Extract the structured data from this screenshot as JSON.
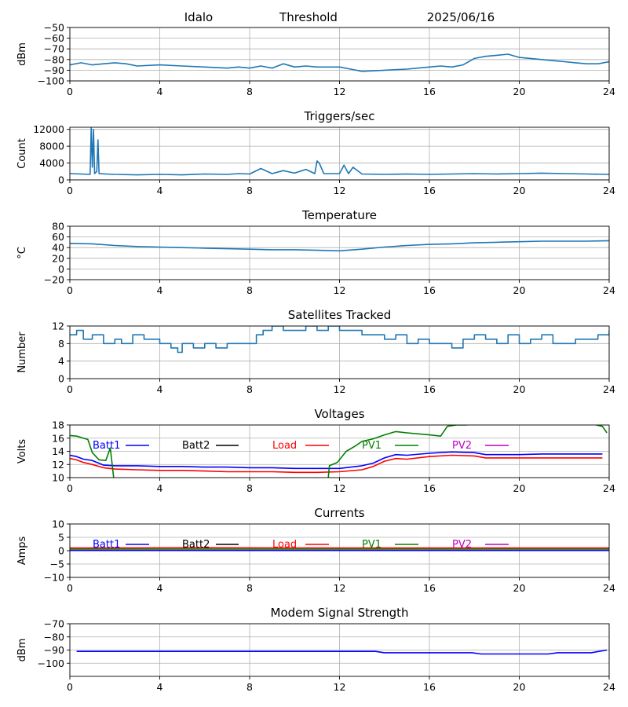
{
  "header": {
    "station": "Idalo",
    "kind": "Threshold",
    "date": "2025/06/16"
  },
  "chart_data": [
    {
      "id": "threshold",
      "type": "line",
      "title": "",
      "ylabel": "dBm",
      "xlim": [
        0,
        24
      ],
      "ylim": [
        -100,
        -50
      ],
      "xticks": [
        0,
        4,
        8,
        12,
        16,
        20,
        24
      ],
      "yticks": [
        -100,
        -90,
        -80,
        -70,
        -60,
        -50
      ],
      "grid": true,
      "series": [
        {
          "color": "#1f77b4",
          "x": [
            0,
            0.5,
            1,
            1.5,
            2,
            2.5,
            3,
            4,
            5,
            6,
            7,
            7.5,
            8,
            8.5,
            9,
            9.5,
            10,
            10.5,
            11,
            12,
            12.5,
            13,
            14,
            15,
            16,
            16.5,
            17,
            17.5,
            18,
            18.5,
            19,
            19.5,
            20,
            20.5,
            21,
            21.5,
            22,
            22.5,
            23,
            23.5,
            24
          ],
          "y": [
            -85,
            -83,
            -85,
            -84,
            -83,
            -84,
            -86,
            -85,
            -86,
            -87,
            -88,
            -87,
            -88,
            -86,
            -88,
            -84,
            -87,
            -86,
            -87,
            -87,
            -89,
            -91,
            -90,
            -89,
            -87,
            -86,
            -87,
            -85,
            -79,
            -77,
            -76,
            -75,
            -78,
            -79,
            -80,
            -81,
            -82,
            -83,
            -84,
            -84,
            -82
          ]
        }
      ]
    },
    {
      "id": "triggers",
      "type": "line",
      "title": "Triggers/sec",
      "ylabel": "Count",
      "xlim": [
        0,
        24
      ],
      "ylim": [
        0,
        12500
      ],
      "xticks": [
        0,
        4,
        8,
        12,
        16,
        20,
        24
      ],
      "yticks": [
        0,
        4000,
        8000,
        12000
      ],
      "grid": true,
      "series": [
        {
          "color": "#1f77b4",
          "x": [
            0,
            0.5,
            0.9,
            0.95,
            1.0,
            1.05,
            1.1,
            1.2,
            1.25,
            1.3,
            1.6,
            2.0,
            3,
            4,
            5,
            6,
            7,
            7.5,
            8,
            8.5,
            9,
            9.5,
            10,
            10.5,
            10.9,
            11.0,
            11.1,
            11.3,
            12,
            12.2,
            12.4,
            12.6,
            13,
            14,
            15,
            16,
            17,
            18,
            19,
            20,
            21,
            22,
            23,
            24
          ],
          "y": [
            1500,
            1400,
            1300,
            12500,
            3000,
            12000,
            1500,
            2000,
            9500,
            1500,
            1400,
            1300,
            1200,
            1300,
            1200,
            1400,
            1300,
            1500,
            1400,
            2700,
            1500,
            2200,
            1600,
            2500,
            1500,
            4500,
            4000,
            1500,
            1500,
            3500,
            1500,
            3000,
            1400,
            1300,
            1400,
            1300,
            1400,
            1500,
            1400,
            1500,
            1600,
            1500,
            1400,
            1300
          ]
        }
      ]
    },
    {
      "id": "temperature",
      "type": "line",
      "title": "Temperature",
      "ylabel": "°C",
      "xlim": [
        0,
        24
      ],
      "ylim": [
        -20,
        80
      ],
      "xticks": [
        0,
        4,
        8,
        12,
        16,
        20,
        24
      ],
      "yticks": [
        -20,
        0,
        20,
        40,
        60,
        80
      ],
      "grid": true,
      "series": [
        {
          "color": "#1f77b4",
          "x": [
            0,
            1,
            2,
            3,
            4,
            5,
            6,
            7,
            8,
            9,
            10,
            11,
            12,
            13,
            14,
            15,
            16,
            17,
            18,
            19,
            20,
            21,
            22,
            23,
            24
          ],
          "y": [
            48,
            47,
            44,
            42,
            41,
            40,
            39,
            38,
            37,
            36,
            36,
            35,
            34,
            37,
            41,
            44,
            46,
            47,
            49,
            50,
            51,
            52,
            52,
            52,
            53
          ]
        }
      ]
    },
    {
      "id": "satellites",
      "type": "line",
      "title": "Satellites Tracked",
      "ylabel": "Number",
      "xlim": [
        0,
        24
      ],
      "ylim": [
        0,
        12
      ],
      "xticks": [
        0,
        4,
        8,
        12,
        16,
        20,
        24
      ],
      "yticks": [
        0,
        4,
        8,
        12
      ],
      "grid": true,
      "series": [
        {
          "color": "#1f77b4",
          "step": true,
          "x": [
            0,
            0.3,
            0.6,
            1,
            1.5,
            2,
            2.3,
            2.8,
            3.3,
            4,
            4.5,
            4.8,
            5,
            5.5,
            6,
            6.5,
            7,
            7.5,
            8,
            8.3,
            8.6,
            9,
            9.5,
            10,
            10.5,
            11,
            11.5,
            12,
            12.5,
            13,
            13.5,
            14,
            14.5,
            15,
            15.5,
            16,
            16.5,
            17,
            17.5,
            18,
            18.5,
            19,
            19.5,
            20,
            20.5,
            21,
            21.5,
            22,
            22.5,
            23,
            23.5,
            24
          ],
          "y": [
            10,
            11,
            9,
            10,
            8,
            9,
            8,
            10,
            9,
            8,
            7,
            6,
            8,
            7,
            8,
            7,
            8,
            8,
            8,
            10,
            11,
            12,
            11,
            11,
            12,
            11,
            12,
            11,
            11,
            10,
            10,
            9,
            10,
            8,
            9,
            8,
            8,
            7,
            9,
            10,
            9,
            8,
            10,
            8,
            9,
            10,
            8,
            8,
            9,
            9,
            10,
            11
          ]
        }
      ]
    },
    {
      "id": "voltages",
      "type": "line",
      "title": "Voltages",
      "ylabel": "Volts",
      "xlim": [
        0,
        24
      ],
      "ylim": [
        10,
        18
      ],
      "xticks": [
        0,
        4,
        8,
        12,
        16,
        20,
        24
      ],
      "yticks": [
        10,
        12,
        14,
        16,
        18
      ],
      "grid": true,
      "legend": [
        {
          "name": "Batt1",
          "color": "#0000ff"
        },
        {
          "name": "Batt2",
          "color": "#000000"
        },
        {
          "name": "Load",
          "color": "#ff0000"
        },
        {
          "name": "PV1",
          "color": "#008000"
        },
        {
          "name": "PV2",
          "color": "#bf00bf"
        }
      ],
      "series": [
        {
          "name": "Batt1",
          "color": "#0000ff",
          "x": [
            0,
            0.3,
            0.6,
            1,
            1.5,
            2,
            3,
            4,
            5,
            6,
            7,
            8,
            9,
            10,
            11,
            12,
            13,
            13.5,
            14,
            14.5,
            15,
            16,
            17,
            18,
            18.5,
            19,
            20,
            21,
            22,
            23,
            23.7
          ],
          "y": [
            13.4,
            13.2,
            12.8,
            12.6,
            11.9,
            11.8,
            11.8,
            11.7,
            11.7,
            11.6,
            11.6,
            11.5,
            11.5,
            11.4,
            11.4,
            11.4,
            11.8,
            12.2,
            13.0,
            13.5,
            13.4,
            13.7,
            13.9,
            13.8,
            13.5,
            13.5,
            13.5,
            13.6,
            13.6,
            13.6,
            13.6
          ]
        },
        {
          "name": "Load",
          "color": "#ff0000",
          "x": [
            0,
            0.3,
            0.6,
            1,
            1.5,
            2,
            3,
            4,
            5,
            6,
            7,
            8,
            9,
            10,
            11,
            12,
            13,
            13.5,
            14,
            14.5,
            15,
            16,
            17,
            18,
            18.5,
            19,
            20,
            21,
            22,
            23,
            23.7
          ],
          "y": [
            12.9,
            12.7,
            12.3,
            12.0,
            11.5,
            11.3,
            11.2,
            11.1,
            11.1,
            11.0,
            10.9,
            10.9,
            10.9,
            10.8,
            10.8,
            10.9,
            11.2,
            11.7,
            12.5,
            12.9,
            12.8,
            13.2,
            13.4,
            13.3,
            13.0,
            13.0,
            13.0,
            13.0,
            13.0,
            13.0,
            13.0
          ]
        },
        {
          "name": "PV1",
          "color": "#008000",
          "segments": [
            {
              "x": [
                0,
                0.3,
                0.7,
                0.8,
                1.0,
                1.3,
                1.6,
                1.8,
                1.95
              ],
              "y": [
                16.4,
                16.3,
                15.9,
                15.8,
                13.8,
                12.7,
                12.6,
                14.5,
                10.0
              ]
            },
            {
              "x": [
                11.5,
                11.55,
                11.9,
                12.3,
                12.7,
                13.0,
                13.5,
                14.0,
                14.5,
                15.0,
                16.0,
                16.5,
                16.8,
                17.2,
                17.6,
                18.0
              ],
              "y": [
                10.0,
                11.8,
                12.3,
                14.0,
                14.8,
                15.5,
                15.9,
                16.5,
                17.0,
                16.8,
                16.5,
                16.3,
                17.8,
                18.0,
                18.0,
                18.1
              ]
            },
            {
              "x": [
                23.3,
                23.7,
                23.9
              ],
              "y": [
                18.1,
                17.8,
                16.8
              ]
            }
          ]
        }
      ]
    },
    {
      "id": "currents",
      "type": "line",
      "title": "Currents",
      "ylabel": "Amps",
      "xlim": [
        0,
        24
      ],
      "ylim": [
        -10,
        10
      ],
      "xticks": [
        0,
        4,
        8,
        12,
        16,
        20,
        24
      ],
      "yticks": [
        -10,
        -5,
        0,
        5,
        10
      ],
      "grid": true,
      "legend": [
        {
          "name": "Batt1",
          "color": "#0000ff"
        },
        {
          "name": "Batt2",
          "color": "#000000"
        },
        {
          "name": "Load",
          "color": "#ff0000"
        },
        {
          "name": "PV1",
          "color": "#008000"
        },
        {
          "name": "PV2",
          "color": "#bf00bf"
        }
      ],
      "series": [
        {
          "name": "PV1",
          "color": "#008000",
          "x": [
            0,
            24
          ],
          "y": [
            0.6,
            0.6
          ]
        },
        {
          "name": "Load",
          "color": "#ff0000",
          "x": [
            0,
            6,
            12,
            18,
            24
          ],
          "y": [
            1.0,
            1.1,
            1.0,
            1.0,
            1.0
          ]
        },
        {
          "name": "Batt1",
          "color": "#0000ff",
          "x": [
            0,
            24
          ],
          "y": [
            0.1,
            0.1
          ]
        }
      ]
    },
    {
      "id": "modem",
      "type": "line",
      "title": "Modem Signal Strength",
      "ylabel": "dBm",
      "xlim": [
        0,
        24
      ],
      "ylim": [
        -110,
        -70
      ],
      "xticks": [
        0,
        4,
        8,
        12,
        16,
        20,
        24
      ],
      "yticks": [
        -100,
        -90,
        -80,
        -70
      ],
      "grid": true,
      "series": [
        {
          "color": "#0000ff",
          "x": [
            0.3,
            13.6,
            14.0,
            17.9,
            18.3,
            21.3,
            21.7,
            23.2,
            23.9
          ],
          "y": [
            -91,
            -91,
            -92,
            -92,
            -93,
            -93,
            -92,
            -92,
            -90
          ]
        }
      ]
    }
  ]
}
